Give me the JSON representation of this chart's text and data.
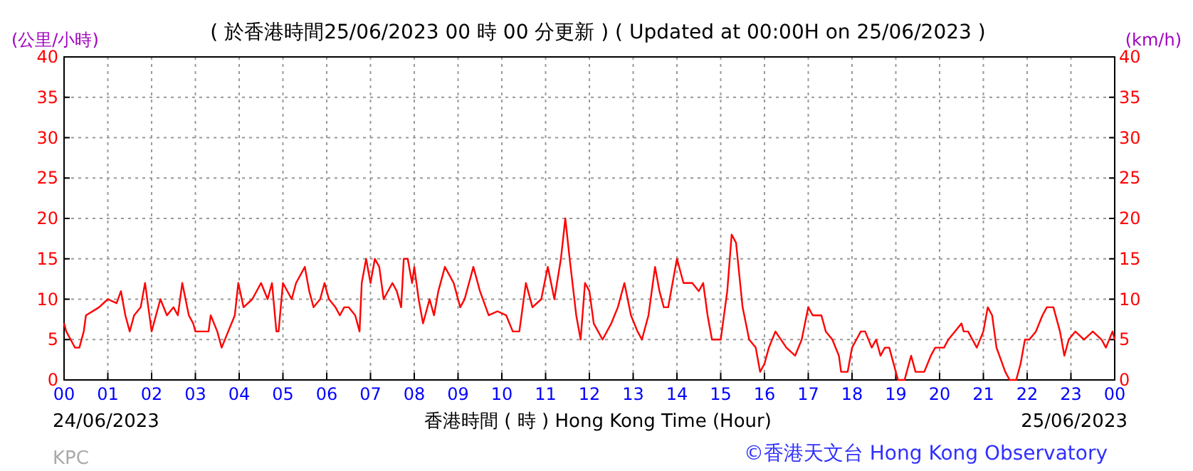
{
  "chart_data": {
    "type": "line",
    "title": "( 於香港時間25/06/2023 00 時 00 分更新 ) ( Updated at 00:00H on 25/06/2023 )",
    "xlabel": "香港時間 ( 時 ) Hong Kong Time (Hour)",
    "ylabel": "(公里/小時)",
    "y2label": "(km/h)",
    "annotations": [
      "24/06/2023",
      "25/06/2023",
      "KPC",
      "©香港天文台 Hong Kong Observatory"
    ],
    "series": [
      {
        "color": "#ff0000",
        "x": [
          0,
          0.05,
          0.15,
          0.25,
          0.35,
          0.45,
          0.5,
          0.8,
          1.0,
          1.2,
          1.3,
          1.4,
          1.5,
          1.6,
          1.75,
          1.85,
          1.95,
          2.0,
          2.1,
          2.2,
          2.35,
          2.5,
          2.6,
          2.7,
          2.85,
          2.95,
          3.0,
          3.3,
          3.35,
          3.5,
          3.6,
          3.75,
          3.9,
          3.98,
          4.1,
          4.3,
          4.5,
          4.65,
          4.75,
          4.85,
          4.9,
          5.0,
          5.2,
          5.3,
          5.5,
          5.6,
          5.7,
          5.85,
          5.95,
          6.05,
          6.2,
          6.3,
          6.4,
          6.5,
          6.65,
          6.75,
          6.8,
          6.9,
          7.0,
          7.1,
          7.2,
          7.3,
          7.5,
          7.6,
          7.7,
          7.76,
          7.85,
          7.95,
          8.0,
          8.1,
          8.2,
          8.35,
          8.45,
          8.55,
          8.7,
          8.8,
          8.9,
          9.05,
          9.15,
          9.35,
          9.5,
          9.7,
          9.9,
          10.1,
          10.25,
          10.4,
          10.55,
          10.7,
          10.9,
          11.05,
          11.2,
          11.35,
          11.45,
          11.55,
          11.7,
          11.8,
          11.9,
          12.0,
          12.1,
          12.2,
          12.3,
          12.5,
          12.65,
          12.8,
          12.95,
          13.1,
          13.2,
          13.35,
          13.5,
          13.6,
          13.7,
          13.8,
          14.0,
          14.15,
          14.35,
          14.5,
          14.6,
          14.7,
          14.8,
          15.0,
          15.15,
          15.25,
          15.35,
          15.5,
          15.65,
          15.8,
          15.9,
          16.0,
          16.1,
          16.25,
          16.5,
          16.7,
          16.85,
          17.0,
          17.1,
          17.3,
          17.4,
          17.55,
          17.7,
          17.75,
          17.9,
          18.0,
          18.1,
          18.2,
          18.3,
          18.45,
          18.55,
          18.65,
          18.75,
          18.85,
          18.95,
          19.05,
          19.2,
          19.35,
          19.45,
          19.65,
          19.8,
          19.9,
          20.1,
          20.2,
          20.35,
          20.5,
          20.55,
          20.65,
          20.85,
          21.0,
          21.1,
          21.2,
          21.3,
          21.5,
          21.6,
          21.75,
          21.85,
          21.95,
          22.05,
          22.2,
          22.35,
          22.45,
          22.6,
          22.75,
          22.85,
          22.95,
          23.1,
          23.3,
          23.5,
          23.7,
          23.8,
          23.95,
          24.0
        ],
        "values": [
          7,
          6,
          5,
          4,
          4,
          6,
          8,
          9,
          10,
          9.5,
          11,
          8,
          6,
          8,
          9,
          12,
          8,
          6,
          8,
          10,
          8,
          9,
          8,
          12,
          8,
          7,
          6,
          6,
          8,
          6,
          4,
          6,
          8,
          12,
          9,
          10,
          12,
          10,
          12,
          6,
          6,
          12,
          10,
          12,
          14,
          11,
          9,
          10,
          12,
          10,
          9,
          8,
          9,
          9,
          8,
          6,
          12,
          15,
          12,
          15,
          14,
          10,
          12,
          11,
          9,
          15,
          15,
          12,
          14,
          10,
          7,
          10,
          8,
          11,
          14,
          13,
          12,
          9,
          10,
          14,
          11,
          8,
          8.5,
          8,
          6,
          6,
          12,
          9,
          10,
          14,
          10,
          15,
          20,
          15,
          8,
          5,
          12,
          11,
          7,
          6,
          5,
          7,
          9,
          12,
          8,
          6,
          5,
          8,
          14,
          11,
          9,
          9,
          15,
          12,
          12,
          11,
          12,
          8,
          5,
          5,
          11,
          18,
          17,
          9,
          5,
          4,
          1,
          2,
          4,
          6,
          4,
          3,
          5,
          9,
          8,
          8,
          6,
          5,
          3,
          1,
          1,
          4,
          5,
          6,
          6,
          4,
          5,
          3,
          4,
          4,
          2,
          0,
          0,
          3,
          1,
          1,
          3,
          4,
          4,
          5,
          6,
          7,
          6,
          6,
          4,
          6,
          9,
          8,
          4,
          1,
          0,
          0,
          2,
          5,
          5,
          6,
          8,
          9,
          9,
          6,
          3,
          5,
          6,
          5,
          6,
          5,
          4,
          6,
          5
        ]
      }
    ],
    "xlim": [
      0,
      24
    ],
    "xticks": [
      {
        "value": 0,
        "label": "00"
      },
      {
        "value": 1,
        "label": "01"
      },
      {
        "value": 2,
        "label": "02"
      },
      {
        "value": 3,
        "label": "03"
      },
      {
        "value": 4,
        "label": "04"
      },
      {
        "value": 5,
        "label": "05"
      },
      {
        "value": 6,
        "label": "06"
      },
      {
        "value": 7,
        "label": "07"
      },
      {
        "value": 8,
        "label": "08"
      },
      {
        "value": 9,
        "label": "09"
      },
      {
        "value": 10,
        "label": "10"
      },
      {
        "value": 11,
        "label": "11"
      },
      {
        "value": 12,
        "label": "12"
      },
      {
        "value": 13,
        "label": "13"
      },
      {
        "value": 14,
        "label": "14"
      },
      {
        "value": 15,
        "label": "15"
      },
      {
        "value": 16,
        "label": "16"
      },
      {
        "value": 17,
        "label": "17"
      },
      {
        "value": 18,
        "label": "18"
      },
      {
        "value": 19,
        "label": "19"
      },
      {
        "value": 20,
        "label": "20"
      },
      {
        "value": 21,
        "label": "21"
      },
      {
        "value": 22,
        "label": "22"
      },
      {
        "value": 23,
        "label": "23"
      },
      {
        "value": 24,
        "label": "00"
      }
    ],
    "ylim": [
      0,
      40
    ],
    "yticks": [
      0,
      5,
      10,
      15,
      20,
      25,
      30,
      35,
      40
    ],
    "y2lim": [
      0,
      40
    ],
    "y2ticks": [
      0,
      5,
      10,
      15,
      20,
      25,
      30,
      35,
      40
    ],
    "grid": true,
    "marker": "none",
    "line_style": "solid"
  }
}
